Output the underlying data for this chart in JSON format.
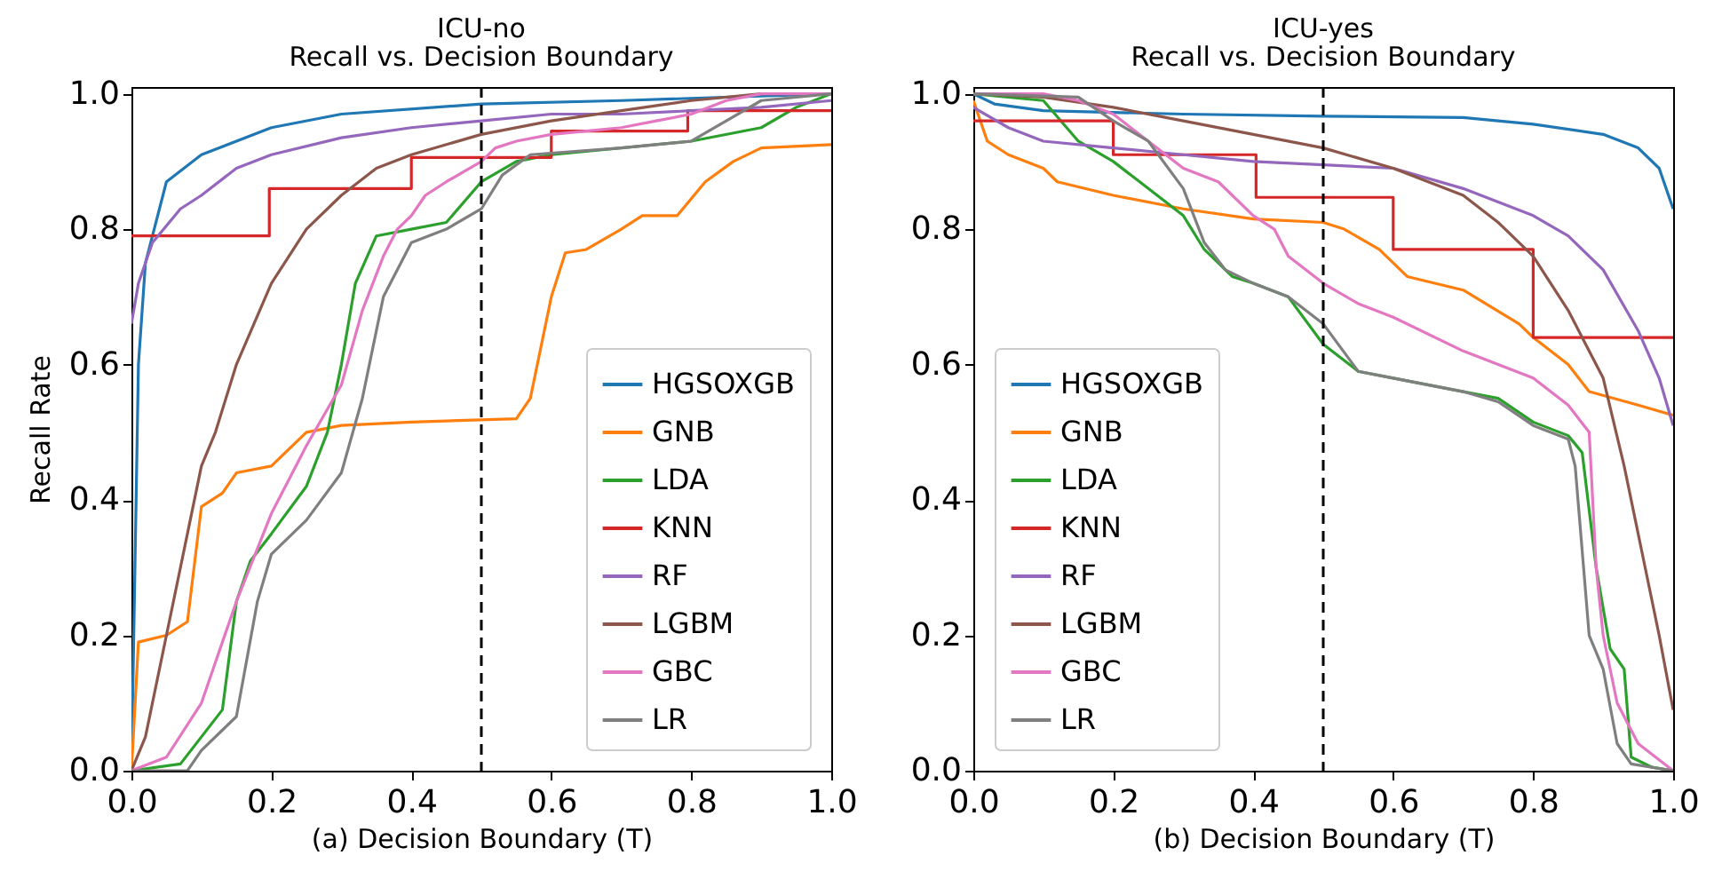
{
  "chart_data": [
    {
      "type": "line",
      "title": "ICU-no",
      "subtitle": "Recall vs. Decision Boundary",
      "xlabel": "(a) Decision Boundary (T)",
      "ylabel": "Recall Rate",
      "xlim": [
        0,
        1
      ],
      "ylim": [
        0,
        1.01
      ],
      "xticks": [
        {
          "value": 0,
          "label": "0.0"
        },
        {
          "value": 0.2,
          "label": "0.2"
        },
        {
          "value": 0.4,
          "label": "0.4"
        },
        {
          "value": 0.6,
          "label": "0.6"
        },
        {
          "value": 0.8,
          "label": "0.8"
        },
        {
          "value": 1,
          "label": "1.0"
        }
      ],
      "yticks": [
        {
          "value": 0,
          "label": "0.0"
        },
        {
          "value": 0.2,
          "label": "0.2"
        },
        {
          "value": 0.4,
          "label": "0.4"
        },
        {
          "value": 0.6,
          "label": "0.6"
        },
        {
          "value": 0.8,
          "label": "0.8"
        },
        {
          "value": 1,
          "label": "1.0"
        }
      ],
      "grid": false,
      "legend": "bottom right",
      "ref_lines": [
        {
          "axis": "x",
          "value": 0.5,
          "color": "#000000",
          "line_style": "dashed"
        }
      ],
      "series": [
        {
          "name": "HGSOXGB",
          "color": "#1f77b4",
          "x": [
            0,
            0.005,
            0.01,
            0.02,
            0.05,
            0.1,
            0.2,
            0.3,
            0.5,
            0.7,
            1.0
          ],
          "values": [
            0,
            0.3,
            0.6,
            0.75,
            0.87,
            0.91,
            0.95,
            0.97,
            0.985,
            0.99,
            1.0
          ]
        },
        {
          "name": "GNB",
          "color": "#ff7f0e",
          "x": [
            0,
            0.01,
            0.05,
            0.08,
            0.1,
            0.13,
            0.15,
            0.2,
            0.22,
            0.25,
            0.3,
            0.4,
            0.55,
            0.57,
            0.6,
            0.62,
            0.65,
            0.7,
            0.73,
            0.78,
            0.82,
            0.86,
            0.9,
            1.0
          ],
          "values": [
            0,
            0.19,
            0.2,
            0.22,
            0.39,
            0.41,
            0.44,
            0.45,
            0.47,
            0.5,
            0.51,
            0.515,
            0.52,
            0.55,
            0.7,
            0.765,
            0.77,
            0.8,
            0.82,
            0.82,
            0.87,
            0.9,
            0.92,
            0.925
          ]
        },
        {
          "name": "LDA",
          "color": "#2ca02c",
          "x": [
            0,
            0.07,
            0.1,
            0.13,
            0.15,
            0.17,
            0.2,
            0.25,
            0.28,
            0.3,
            0.32,
            0.35,
            0.4,
            0.45,
            0.5,
            0.55,
            0.6,
            0.8,
            0.9,
            0.95,
            1.0
          ],
          "values": [
            0,
            0.01,
            0.05,
            0.09,
            0.25,
            0.31,
            0.35,
            0.42,
            0.5,
            0.6,
            0.72,
            0.79,
            0.8,
            0.81,
            0.87,
            0.9,
            0.91,
            0.93,
            0.95,
            0.98,
            1.0
          ]
        },
        {
          "name": "KNN",
          "color": "#d62728",
          "type": "step",
          "x": [
            0,
            0.197,
            0.4,
            0.6,
            0.795,
            1.0
          ],
          "values": [
            0.79,
            0.86,
            0.906,
            0.945,
            0.975,
            0.975
          ]
        },
        {
          "name": "RF",
          "color": "#9467bd",
          "x": [
            0,
            0.01,
            0.03,
            0.07,
            0.1,
            0.15,
            0.2,
            0.3,
            0.4,
            0.5,
            0.6,
            0.7,
            0.8,
            0.9,
            1.0
          ],
          "values": [
            0.66,
            0.72,
            0.78,
            0.83,
            0.85,
            0.89,
            0.91,
            0.935,
            0.95,
            0.96,
            0.97,
            0.97,
            0.975,
            0.98,
            0.99
          ]
        },
        {
          "name": "LGBM",
          "color": "#8c564b",
          "x": [
            0,
            0.02,
            0.05,
            0.08,
            0.1,
            0.12,
            0.15,
            0.2,
            0.25,
            0.3,
            0.35,
            0.4,
            0.5,
            0.6,
            0.7,
            0.8,
            0.9,
            1.0
          ],
          "values": [
            0,
            0.05,
            0.2,
            0.35,
            0.45,
            0.5,
            0.6,
            0.72,
            0.8,
            0.85,
            0.89,
            0.91,
            0.94,
            0.96,
            0.975,
            0.99,
            1.0,
            1.0
          ]
        },
        {
          "name": "GBC",
          "color": "#e377c2",
          "x": [
            0,
            0.05,
            0.1,
            0.15,
            0.2,
            0.25,
            0.3,
            0.33,
            0.36,
            0.38,
            0.4,
            0.42,
            0.45,
            0.5,
            0.52,
            0.55,
            0.6,
            0.65,
            0.7,
            0.75,
            0.8,
            0.85,
            0.9,
            1.0
          ],
          "values": [
            0,
            0.02,
            0.1,
            0.25,
            0.38,
            0.48,
            0.57,
            0.68,
            0.76,
            0.8,
            0.82,
            0.85,
            0.87,
            0.9,
            0.92,
            0.93,
            0.94,
            0.945,
            0.95,
            0.96,
            0.97,
            0.99,
            1.0,
            1.0
          ]
        },
        {
          "name": "LR",
          "color": "#7f7f7f",
          "x": [
            0,
            0.08,
            0.1,
            0.13,
            0.15,
            0.18,
            0.2,
            0.25,
            0.3,
            0.33,
            0.36,
            0.4,
            0.45,
            0.5,
            0.53,
            0.57,
            0.7,
            0.8,
            0.85,
            0.9,
            1.0
          ],
          "values": [
            0,
            0,
            0.03,
            0.06,
            0.08,
            0.25,
            0.32,
            0.37,
            0.44,
            0.55,
            0.7,
            0.78,
            0.8,
            0.83,
            0.88,
            0.91,
            0.92,
            0.93,
            0.96,
            0.99,
            1.0
          ]
        }
      ]
    },
    {
      "type": "line",
      "title": "ICU-yes",
      "subtitle": "Recall vs. Decision Boundary",
      "xlabel": "(b) Decision Boundary (T)",
      "xlim": [
        0,
        1
      ],
      "ylim": [
        0,
        1.01
      ],
      "xticks": [
        {
          "value": 0,
          "label": "0.0"
        },
        {
          "value": 0.2,
          "label": "0.2"
        },
        {
          "value": 0.4,
          "label": "0.4"
        },
        {
          "value": 0.6,
          "label": "0.6"
        },
        {
          "value": 0.8,
          "label": "0.8"
        },
        {
          "value": 1,
          "label": "1.0"
        }
      ],
      "yticks": [
        {
          "value": 0,
          "label": "0.0"
        },
        {
          "value": 0.2,
          "label": "0.2"
        },
        {
          "value": 0.4,
          "label": "0.4"
        },
        {
          "value": 0.6,
          "label": "0.6"
        },
        {
          "value": 0.8,
          "label": "0.8"
        },
        {
          "value": 1,
          "label": "1.0"
        }
      ],
      "grid": false,
      "legend": "bottom left",
      "ref_lines": [
        {
          "axis": "x",
          "value": 0.5,
          "color": "#000000",
          "line_style": "dashed"
        }
      ],
      "series": [
        {
          "name": "HGSOXGB",
          "color": "#1f77b4",
          "x": [
            0,
            0.03,
            0.1,
            0.3,
            0.5,
            0.7,
            0.8,
            0.9,
            0.95,
            0.98,
            1.0
          ],
          "values": [
            1.0,
            0.985,
            0.975,
            0.97,
            0.967,
            0.965,
            0.955,
            0.94,
            0.92,
            0.89,
            0.83
          ]
        },
        {
          "name": "GNB",
          "color": "#ff7f0e",
          "x": [
            0,
            0.02,
            0.05,
            0.1,
            0.12,
            0.2,
            0.3,
            0.4,
            0.5,
            0.53,
            0.58,
            0.62,
            0.7,
            0.78,
            0.8,
            0.85,
            0.88,
            0.95,
            1.0
          ],
          "values": [
            0.99,
            0.93,
            0.91,
            0.89,
            0.87,
            0.85,
            0.83,
            0.815,
            0.81,
            0.8,
            0.77,
            0.73,
            0.71,
            0.66,
            0.64,
            0.6,
            0.56,
            0.54,
            0.525
          ]
        },
        {
          "name": "LDA",
          "color": "#2ca02c",
          "x": [
            0,
            0.1,
            0.15,
            0.2,
            0.25,
            0.3,
            0.33,
            0.37,
            0.4,
            0.45,
            0.5,
            0.55,
            0.6,
            0.7,
            0.75,
            0.8,
            0.85,
            0.87,
            0.89,
            0.91,
            0.93,
            0.94,
            0.97,
            1.0
          ],
          "values": [
            1.0,
            0.99,
            0.93,
            0.9,
            0.86,
            0.82,
            0.77,
            0.73,
            0.72,
            0.7,
            0.63,
            0.59,
            0.58,
            0.56,
            0.55,
            0.515,
            0.495,
            0.47,
            0.3,
            0.18,
            0.15,
            0.02,
            0.005,
            0
          ]
        },
        {
          "name": "KNN",
          "color": "#d62728",
          "type": "step",
          "x": [
            0,
            0.2,
            0.404,
            0.6,
            0.8,
            1.0
          ],
          "values": [
            0.96,
            0.91,
            0.847,
            0.77,
            0.64,
            0.64
          ]
        },
        {
          "name": "RF",
          "color": "#9467bd",
          "x": [
            0,
            0.05,
            0.1,
            0.2,
            0.3,
            0.4,
            0.5,
            0.6,
            0.7,
            0.8,
            0.85,
            0.9,
            0.95,
            0.98,
            1.0
          ],
          "values": [
            0.98,
            0.95,
            0.93,
            0.92,
            0.91,
            0.9,
            0.895,
            0.89,
            0.86,
            0.82,
            0.79,
            0.74,
            0.65,
            0.58,
            0.51
          ]
        },
        {
          "name": "LGBM",
          "color": "#8c564b",
          "x": [
            0,
            0.1,
            0.2,
            0.3,
            0.4,
            0.5,
            0.6,
            0.7,
            0.75,
            0.8,
            0.85,
            0.9,
            0.93,
            0.96,
            0.98,
            1.0
          ],
          "values": [
            1.0,
            0.995,
            0.98,
            0.96,
            0.94,
            0.92,
            0.89,
            0.85,
            0.81,
            0.76,
            0.68,
            0.58,
            0.45,
            0.3,
            0.2,
            0.09
          ]
        },
        {
          "name": "GBC",
          "color": "#e377c2",
          "x": [
            0,
            0.1,
            0.15,
            0.2,
            0.25,
            0.3,
            0.35,
            0.4,
            0.43,
            0.45,
            0.5,
            0.55,
            0.6,
            0.7,
            0.8,
            0.85,
            0.88,
            0.89,
            0.9,
            0.92,
            0.95,
            1.0
          ],
          "values": [
            1.0,
            1.0,
            0.99,
            0.97,
            0.93,
            0.89,
            0.87,
            0.82,
            0.8,
            0.76,
            0.72,
            0.69,
            0.67,
            0.62,
            0.58,
            0.54,
            0.5,
            0.3,
            0.2,
            0.1,
            0.04,
            0
          ]
        },
        {
          "name": "LR",
          "color": "#7f7f7f",
          "x": [
            0,
            0.15,
            0.2,
            0.25,
            0.3,
            0.33,
            0.36,
            0.4,
            0.45,
            0.5,
            0.55,
            0.6,
            0.7,
            0.75,
            0.8,
            0.85,
            0.86,
            0.88,
            0.9,
            0.92,
            0.94,
            1.0
          ],
          "values": [
            1.0,
            0.995,
            0.96,
            0.93,
            0.86,
            0.78,
            0.74,
            0.72,
            0.7,
            0.66,
            0.59,
            0.58,
            0.56,
            0.545,
            0.51,
            0.49,
            0.45,
            0.2,
            0.15,
            0.04,
            0.01,
            0
          ]
        }
      ]
    }
  ]
}
